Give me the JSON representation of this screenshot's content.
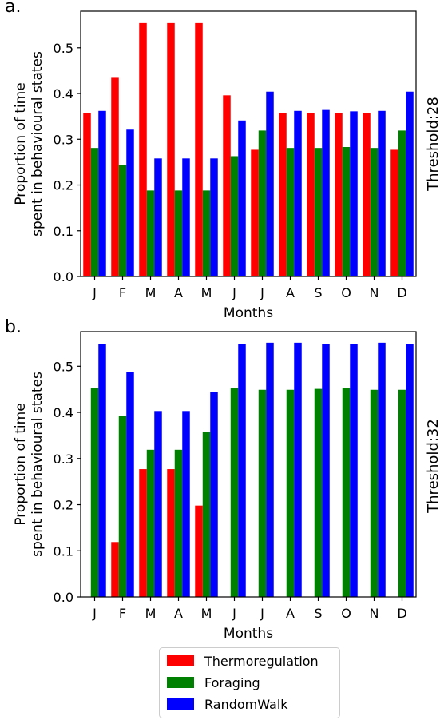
{
  "chart_data": [
    {
      "type": "bar",
      "panel_label": "a.",
      "side_label": "Threshold:28",
      "xlabel": "Months",
      "ylabel": [
        "Proportion of time",
        "spent in behavioural states"
      ],
      "categories": [
        "J",
        "F",
        "M",
        "A",
        "M",
        "J",
        "J",
        "A",
        "S",
        "O",
        "N",
        "D"
      ],
      "ylim": [
        0,
        0.58
      ],
      "yticks": [
        "0.0",
        "0.1",
        "0.2",
        "0.3",
        "0.4",
        "0.5"
      ],
      "series": [
        {
          "name": "Thermoregulation",
          "color": "#ff0000",
          "values": [
            0.357,
            0.436,
            0.554,
            0.554,
            0.554,
            0.396,
            0.277,
            0.357,
            0.357,
            0.357,
            0.357,
            0.277
          ]
        },
        {
          "name": "Foraging",
          "color": "#008000",
          "values": [
            0.281,
            0.243,
            0.188,
            0.188,
            0.188,
            0.263,
            0.319,
            0.281,
            0.281,
            0.283,
            0.281,
            0.319
          ]
        },
        {
          "name": "RandomWalk",
          "color": "#0000ff",
          "values": [
            0.362,
            0.321,
            0.258,
            0.258,
            0.258,
            0.341,
            0.404,
            0.362,
            0.364,
            0.361,
            0.362,
            0.404
          ]
        }
      ]
    },
    {
      "type": "bar",
      "panel_label": "b.",
      "side_label": "Threshold:32",
      "xlabel": "Months",
      "ylabel": [
        "Proportion of time",
        "spent in behavioural states"
      ],
      "categories": [
        "J",
        "F",
        "M",
        "A",
        "M",
        "J",
        "J",
        "A",
        "S",
        "O",
        "N",
        "D"
      ],
      "ylim": [
        0,
        0.575
      ],
      "yticks": [
        "0.0",
        "0.1",
        "0.2",
        "0.3",
        "0.4",
        "0.5"
      ],
      "series": [
        {
          "name": "Thermoregulation",
          "color": "#ff0000",
          "values": [
            0,
            0.119,
            0.277,
            0.277,
            0.198,
            0,
            0,
            0,
            0,
            0,
            0,
            0
          ]
        },
        {
          "name": "Foraging",
          "color": "#008000",
          "values": [
            0.452,
            0.393,
            0.319,
            0.319,
            0.357,
            0.452,
            0.449,
            0.449,
            0.451,
            0.452,
            0.449,
            0.449
          ]
        },
        {
          "name": "RandomWalk",
          "color": "#0000ff",
          "values": [
            0.548,
            0.487,
            0.403,
            0.403,
            0.445,
            0.548,
            0.551,
            0.551,
            0.549,
            0.548,
            0.551,
            0.549
          ]
        }
      ]
    }
  ],
  "legend": {
    "placement": "bottom-center",
    "items": [
      {
        "label": "Thermoregulation",
        "color": "#ff0000"
      },
      {
        "label": "Foraging",
        "color": "#008000"
      },
      {
        "label": "RandomWalk",
        "color": "#0000ff"
      }
    ]
  }
}
